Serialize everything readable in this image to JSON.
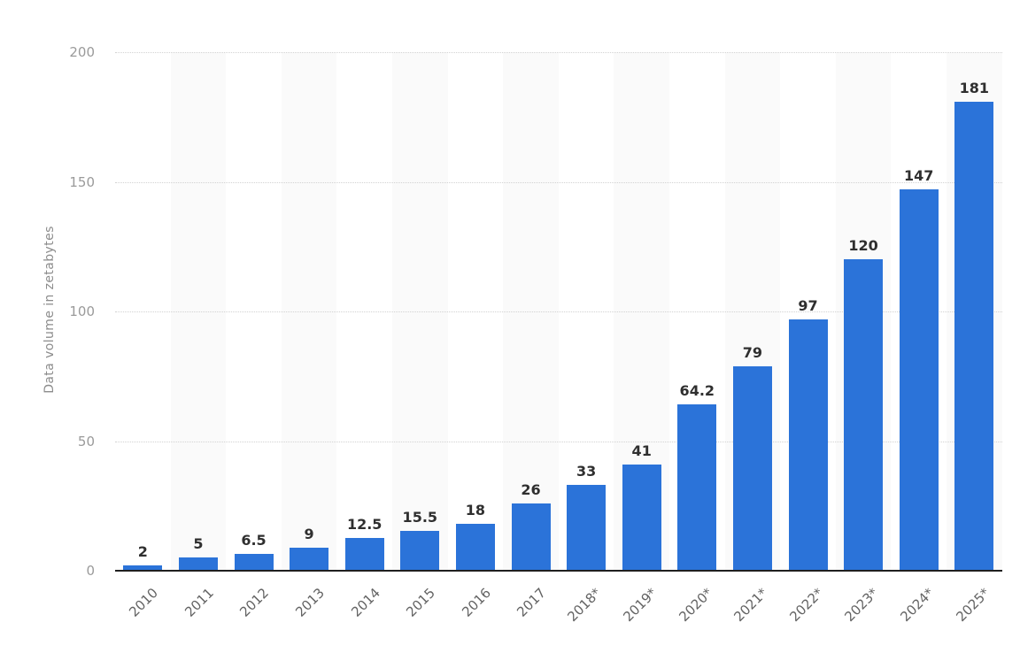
{
  "chart_data": {
    "type": "bar",
    "title": "",
    "xlabel": "",
    "ylabel": "Data volume in zetabytes",
    "categories": [
      "2010",
      "2011",
      "2012",
      "2013",
      "2014",
      "2015",
      "2016",
      "2017",
      "2018*",
      "2019*",
      "2020*",
      "2021*",
      "2022*",
      "2023*",
      "2024*",
      "2025*"
    ],
    "values": [
      2,
      5,
      6.5,
      9,
      12.5,
      15.5,
      18,
      26,
      33,
      41,
      64.2,
      79,
      97,
      120,
      147,
      181
    ],
    "value_labels": [
      "2",
      "5",
      "6.5",
      "9",
      "12.5",
      "15.5",
      "18",
      "26",
      "33",
      "41",
      "64.2",
      "79",
      "97",
      "120",
      "147",
      "181"
    ],
    "yticks": [
      0,
      50,
      100,
      150,
      200
    ],
    "ylim": [
      0,
      200
    ],
    "grid": "horizontal-dotted",
    "legend": "none",
    "colors": {
      "bar": "#2b73d9",
      "column_band": "#fafafa",
      "gridline": "#d2d2d2",
      "axis_line": "#1f1f1f",
      "ytick_text": "#9a9a9a",
      "xtick_text": "#636363",
      "ytitle_text": "#8c8c8c",
      "data_label_text": "#2f2f2f",
      "background": "#ffffff"
    }
  }
}
